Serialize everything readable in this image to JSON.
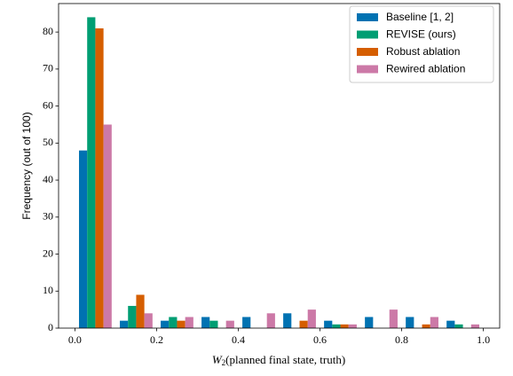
{
  "chart_data": {
    "type": "histogram",
    "xlabel": {
      "symbol": "W",
      "subscript": "2",
      "text": "(planned final state, truth)"
    },
    "ylabel": "Frequency (out of 100)",
    "bins": [
      0,
      0.1,
      0.2,
      0.3,
      0.4,
      0.5,
      0.6,
      0.7,
      0.8,
      0.9,
      1.0
    ],
    "series": [
      {
        "name": "Baseline [1, 2]",
        "color": "#0072b2",
        "values": [
          48,
          2,
          2,
          3,
          3,
          4,
          2,
          3,
          3,
          2
        ]
      },
      {
        "name": "REVISE (ours)",
        "color": "#009e73",
        "values": [
          84,
          6,
          3,
          2,
          0,
          0,
          1,
          0,
          0,
          1
        ]
      },
      {
        "name": "Robust ablation",
        "color": "#d55e00",
        "values": [
          81,
          9,
          2,
          0,
          0,
          2,
          1,
          0,
          1,
          0
        ]
      },
      {
        "name": "Rewired ablation",
        "color": "#cc79a7",
        "values": [
          55,
          4,
          3,
          2,
          4,
          5,
          1,
          5,
          3,
          1
        ]
      }
    ],
    "xlim": [
      -0.04,
      1.04
    ],
    "ylim": [
      0,
      87.7
    ],
    "xticks": [
      {
        "value": 0,
        "label": "0.0"
      },
      {
        "value": 0.2,
        "label": "0.2"
      },
      {
        "value": 0.4,
        "label": "0.4"
      },
      {
        "value": 0.6,
        "label": "0.6"
      },
      {
        "value": 0.8,
        "label": "0.8"
      },
      {
        "value": 1.0,
        "label": "1.0"
      }
    ],
    "yticks": [
      0,
      10,
      20,
      30,
      40,
      50,
      60,
      70,
      80
    ],
    "legend": "upper right"
  }
}
